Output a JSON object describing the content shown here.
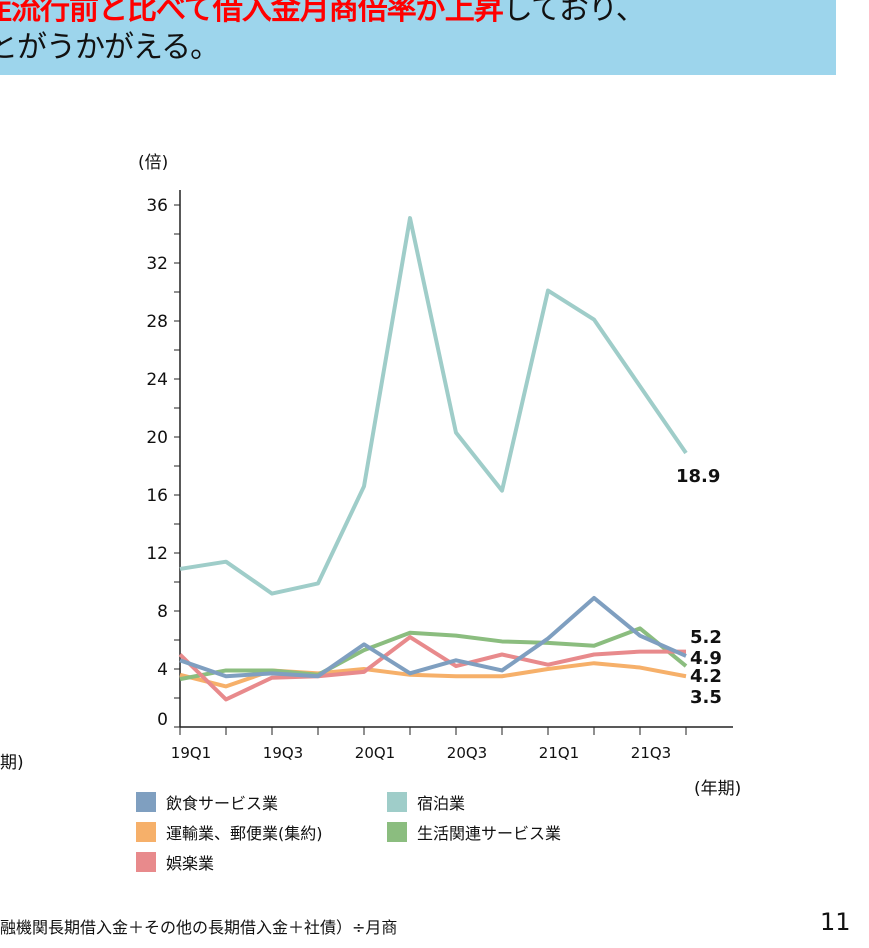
{
  "banner": {
    "line1_red": "症流行前と比べて借入金月商倍率が上昇",
    "line1_black": "しており、",
    "line2": "とがうかがえる。"
  },
  "left_partial_label": "期)",
  "footer": {
    "formula": "融機関長期借入金＋その他の長期借入金＋社債）÷月商",
    "page_number": "11"
  },
  "chart_data": {
    "type": "line",
    "ylabel": "(倍)",
    "xlabel": "(年期)",
    "ylim": [
      0,
      37
    ],
    "yticks": [
      0,
      4,
      8,
      12,
      16,
      20,
      24,
      28,
      32,
      36
    ],
    "x": [
      "19Q1",
      "19Q2",
      "19Q3",
      "19Q4",
      "20Q1",
      "20Q2",
      "20Q3",
      "20Q4",
      "21Q1",
      "21Q2",
      "21Q3",
      "21Q4"
    ],
    "xtick_labels": [
      "19Q1",
      "19Q3",
      "20Q1",
      "20Q3",
      "21Q1",
      "21Q3"
    ],
    "grid": false,
    "legend_position": "bottom",
    "series": [
      {
        "name": "飲食サービス業",
        "color": "#7f9fc0",
        "values": [
          4.6,
          3.5,
          3.7,
          3.5,
          5.7,
          3.7,
          4.6,
          3.9,
          6.1,
          8.9,
          6.3,
          4.9
        ],
        "end_label": "4.9"
      },
      {
        "name": "宿泊業",
        "color": "#9fcdc9",
        "values": [
          10.9,
          11.4,
          9.2,
          9.9,
          16.6,
          35.1,
          20.3,
          16.3,
          30.1,
          28.1,
          23.5,
          18.9
        ],
        "end_label": "18.9"
      },
      {
        "name": "運輸業、郵便業(集約)",
        "color": "#f6b06a",
        "values": [
          3.6,
          2.8,
          3.9,
          3.7,
          4.0,
          3.6,
          3.5,
          3.5,
          4.0,
          4.4,
          4.1,
          3.5
        ],
        "end_label": "3.5"
      },
      {
        "name": "生活関連サービス業",
        "color": "#8bbd7f",
        "values": [
          3.3,
          3.9,
          3.9,
          3.6,
          5.3,
          6.5,
          6.3,
          5.9,
          5.8,
          5.6,
          6.8,
          4.2
        ],
        "end_label": "4.2"
      },
      {
        "name": "娯楽業",
        "color": "#e88a8c",
        "values": [
          5.0,
          1.9,
          3.4,
          3.5,
          3.8,
          6.2,
          4.2,
          5.0,
          4.3,
          5.0,
          5.2,
          5.2
        ],
        "end_label": "5.2"
      }
    ]
  }
}
